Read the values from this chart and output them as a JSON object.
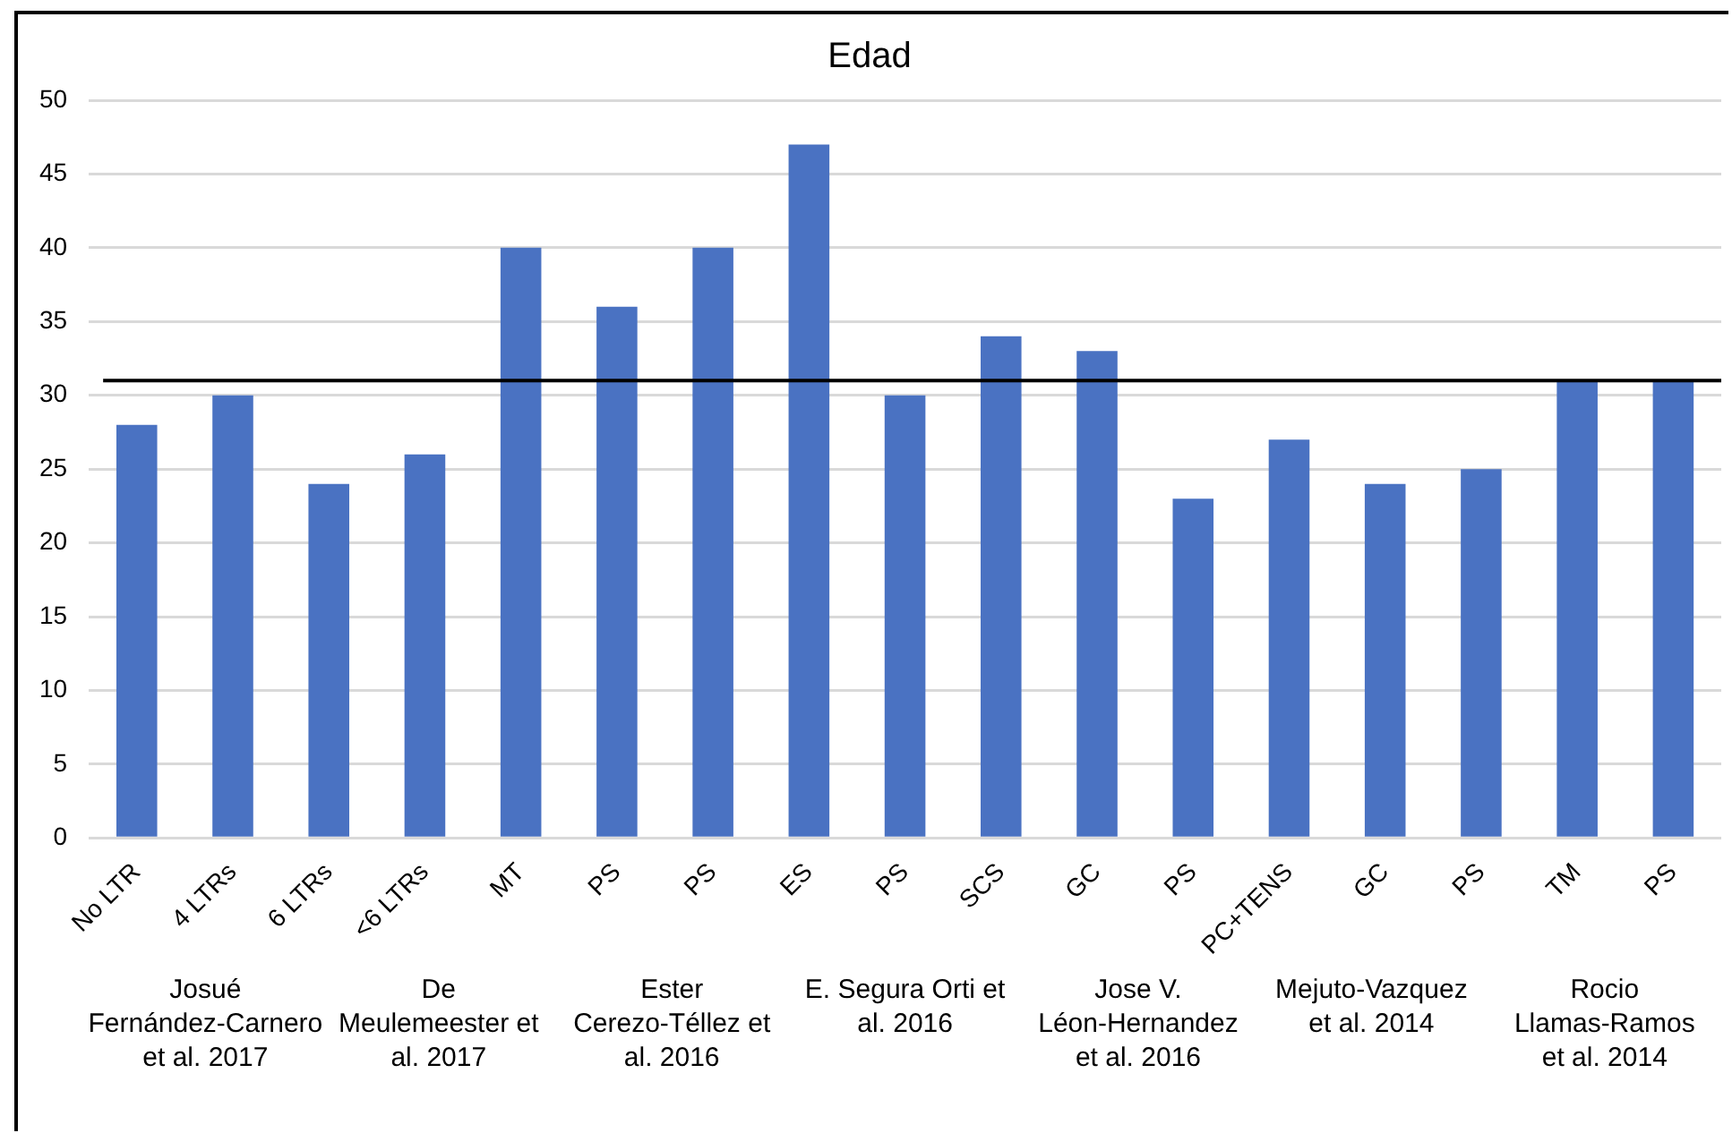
{
  "chart_data": {
    "type": "bar",
    "title": "Edad",
    "categories": [
      "No LTR",
      "4 LTRs",
      "6 LTRs",
      "<6 LTRs",
      "MT",
      "PS",
      "PS",
      "ES",
      "PS",
      "SCS",
      "GC",
      "PS",
      "PC+TENS",
      "GC",
      "PS",
      "TM",
      "PS"
    ],
    "values": [
      28,
      30,
      24,
      26,
      40,
      36,
      40,
      47,
      30,
      34,
      33,
      23,
      27,
      24,
      25,
      31,
      31
    ],
    "color": "#4a72c2",
    "ylim": [
      0,
      50
    ],
    "yticks": [
      0,
      5,
      10,
      15,
      20,
      25,
      30,
      35,
      40,
      45,
      50
    ],
    "grid": "y",
    "legend": false,
    "ref_lines": [
      {
        "axis": "y",
        "value": 31,
        "color": "#000000"
      }
    ],
    "annotations": [
      "Josué Fernández-Carnero et al. 2017",
      "De Meulemeester et al. 2017",
      "Ester Cerezo-Téllez et al. 2016",
      "E. Segura Orti et al. 2016",
      "Jose V. Léon-Hernandez et al. 2016",
      "Mejuto-Vazquez et al. 2014",
      "Rocio Llamas-Ramos et al. 2014"
    ]
  }
}
